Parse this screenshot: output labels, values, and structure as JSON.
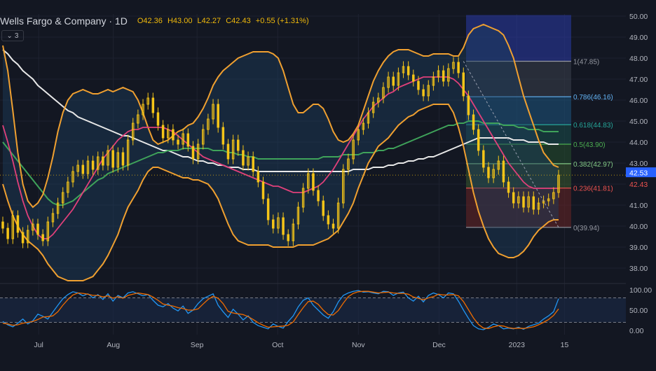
{
  "header": {
    "symbol": "Wells Fargo & Company · 1D",
    "open": "O42.36",
    "high": "H43.00",
    "low": "L42.27",
    "close": "C42.43",
    "change": "+0.55 (+1.31%)"
  },
  "indicators_button": {
    "icon": "chevron-down-icon",
    "count": "3"
  },
  "colors": {
    "background": "#131722",
    "grid": "#1e2230",
    "axis_text": "#b2b5be",
    "up": "#f5c518",
    "bands": "#f0a030",
    "basis": "#e0407a",
    "sma_green": "#3fa35a",
    "sma_white": "#e8e8e8",
    "stoch_k": "#2196f3",
    "stoch_d": "#ef6c00"
  },
  "chart_data": [
    {
      "type": "candlestick",
      "title": "",
      "ylim": [
        37.3,
        50.1
      ],
      "y_ticks": [
        "50.00",
        "49.00",
        "48.00",
        "47.00",
        "46.00",
        "45.00",
        "44.00",
        "43.00",
        "42.00",
        "41.00",
        "40.00",
        "39.00",
        "38.00"
      ],
      "x_ticks": [
        "Jul",
        "Aug",
        "Sep",
        "Oct",
        "Nov",
        "Dec",
        "2023",
        "15"
      ],
      "price_labels": {
        "last": "42.43",
        "other": "42.53"
      },
      "closes": [
        39.9,
        39.4,
        40.5,
        39.7,
        39.2,
        39.8,
        40.1,
        39.6,
        39.3,
        40.2,
        40.6,
        41.1,
        41.6,
        42.1,
        42.6,
        42.9,
        42.5,
        43.1,
        42.7,
        43.3,
        42.9,
        43.6,
        42.8,
        43.5,
        42.9,
        44.1,
        44.9,
        45.3,
        45.8,
        46.1,
        45.4,
        44.8,
        44.2,
        44.6,
        44.1,
        43.9,
        44.4,
        43.8,
        43.2,
        43.9,
        44.6,
        45.1,
        45.8,
        44.7,
        43.9,
        43.2,
        44.1,
        43.6,
        42.9,
        43.3,
        42.6,
        42.1,
        41.3,
        40.3,
        39.9,
        40.4,
        39.6,
        39.3,
        40.1,
        40.9,
        41.8,
        42.5,
        41.7,
        41.2,
        40.5,
        40.1,
        39.9,
        41.1,
        42.7,
        43.2,
        44.1,
        44.6,
        44.9,
        45.4,
        45.9,
        46.1,
        46.6,
        47.1,
        46.7,
        47.3,
        47.6,
        47.2,
        46.9,
        46.5,
        46.2,
        46.7,
        47.1,
        47.4,
        46.9,
        47.5,
        47.8,
        47.3,
        46.2,
        45.3,
        44.6,
        43.6,
        42.8,
        42.3,
        42.7,
        43.1,
        42.1,
        41.6,
        41.1,
        41.4,
        40.9,
        41.4,
        40.8,
        41.1,
        41.2,
        41.3,
        41.6,
        42.43
      ],
      "bollinger_upper": [
        48.6,
        47.4,
        45.5,
        43.5,
        42.0,
        41.2,
        40.9,
        41.1,
        41.5,
        42.3,
        43.3,
        44.5,
        45.4,
        46.0,
        46.3,
        46.4,
        46.5,
        46.4,
        46.3,
        46.3,
        46.4,
        46.5,
        46.4,
        46.5,
        46.6,
        46.5,
        46.4,
        46.0,
        45.4,
        44.7,
        44.1,
        43.9,
        44.0,
        44.1,
        44.3,
        44.5,
        44.6,
        44.8,
        44.9,
        45.2,
        45.6,
        46.1,
        46.7,
        47.1,
        47.4,
        47.6,
        47.8,
        48.0,
        48.1,
        48.2,
        48.3,
        48.3,
        48.3,
        48.3,
        48.2,
        48.0,
        47.4,
        46.6,
        45.8,
        45.4,
        45.4,
        45.6,
        45.8,
        45.8,
        45.6,
        45.1,
        44.5,
        44.1,
        44.0,
        44.1,
        44.4,
        44.8,
        45.5,
        46.2,
        46.9,
        47.4,
        47.8,
        48.1,
        48.3,
        48.4,
        48.4,
        48.4,
        48.3,
        48.2,
        48.1,
        48.1,
        48.2,
        48.2,
        48.2,
        48.2,
        48.1,
        48.1,
        48.5,
        49.1,
        49.4,
        49.5,
        49.6,
        49.5,
        49.4,
        49.3,
        49.1,
        48.6,
        48.0,
        47.1,
        46.2,
        45.5,
        44.8,
        44.1,
        43.5,
        43.2,
        42.9,
        42.8
      ],
      "bollinger_lower": [
        42.0,
        41.2,
        40.5,
        40.0,
        39.6,
        39.3,
        39.1,
        38.9,
        38.6,
        38.2,
        37.9,
        37.6,
        37.5,
        37.4,
        37.4,
        37.4,
        37.4,
        37.5,
        37.6,
        37.9,
        38.2,
        38.6,
        39.1,
        39.6,
        40.3,
        40.9,
        41.3,
        41.7,
        42.2,
        42.6,
        42.8,
        42.8,
        42.7,
        42.6,
        42.5,
        42.4,
        42.3,
        42.3,
        42.2,
        42.2,
        42.1,
        42.0,
        41.7,
        41.3,
        40.7,
        40.1,
        39.6,
        39.3,
        39.2,
        39.1,
        39.1,
        39.1,
        39.1,
        39.1,
        39.0,
        39.0,
        39.0,
        39.0,
        39.0,
        39.1,
        39.1,
        39.1,
        39.1,
        39.2,
        39.3,
        39.4,
        39.6,
        39.8,
        40.2,
        40.6,
        41.1,
        41.8,
        42.4,
        43.0,
        43.4,
        43.8,
        44.0,
        44.2,
        44.5,
        44.8,
        45.0,
        45.2,
        45.3,
        45.5,
        45.6,
        45.7,
        45.8,
        45.8,
        45.8,
        45.8,
        45.4,
        44.7,
        43.8,
        42.7,
        41.6,
        40.7,
        40.0,
        39.4,
        39.0,
        38.7,
        38.6,
        38.5,
        38.5,
        38.6,
        38.8,
        39.1,
        39.5,
        39.8,
        40.0,
        40.2,
        40.3,
        40.3
      ],
      "bollinger_basis": [
        44.8,
        44.0,
        43.1,
        42.1,
        41.2,
        40.5,
        40.0,
        39.6,
        39.4,
        39.4,
        39.6,
        39.9,
        40.2,
        40.5,
        40.8,
        41.2,
        41.6,
        42.0,
        42.4,
        42.8,
        43.2,
        43.5,
        43.8,
        44.1,
        44.3,
        44.5,
        44.6,
        44.6,
        44.7,
        44.7,
        44.7,
        44.7,
        44.7,
        44.6,
        44.5,
        44.3,
        44.1,
        43.9,
        43.7,
        43.5,
        43.3,
        43.2,
        43.1,
        43.0,
        42.9,
        42.8,
        42.7,
        42.6,
        42.5,
        42.4,
        42.3,
        42.2,
        42.1,
        42.0,
        41.9,
        41.9,
        41.8,
        41.7,
        41.6,
        41.6,
        41.6,
        41.7,
        41.8,
        41.9,
        42.1,
        42.4,
        42.7,
        43.1,
        43.5,
        43.9,
        44.3,
        44.7,
        45.1,
        45.4,
        45.7,
        45.9,
        46.1,
        46.3,
        46.4,
        46.6,
        46.7,
        46.8,
        46.9,
        47.0,
        47.1,
        47.1,
        47.1,
        47.1,
        47.1,
        47.1,
        47.0,
        46.8,
        46.5,
        46.2,
        45.8,
        45.4,
        45.0,
        44.6,
        44.2,
        43.8,
        43.4,
        43.0,
        42.7,
        42.4,
        42.1,
        41.9,
        41.8,
        41.8,
        41.8,
        41.8,
        41.8,
        41.8
      ],
      "sma_green": [
        44.0,
        43.7,
        43.4,
        43.1,
        42.8,
        42.5,
        42.2,
        41.9,
        41.6,
        41.3,
        41.1,
        41.0,
        41.0,
        41.1,
        41.2,
        41.4,
        41.6,
        41.8,
        42.0,
        42.2,
        42.3,
        42.5,
        42.6,
        42.7,
        42.8,
        42.9,
        43.0,
        43.1,
        43.2,
        43.3,
        43.4,
        43.5,
        43.5,
        43.6,
        43.6,
        43.6,
        43.7,
        43.7,
        43.7,
        43.7,
        43.7,
        43.7,
        43.6,
        43.6,
        43.6,
        43.5,
        43.5,
        43.4,
        43.4,
        43.3,
        43.3,
        43.2,
        43.2,
        43.2,
        43.2,
        43.2,
        43.2,
        43.2,
        43.2,
        43.2,
        43.2,
        43.2,
        43.2,
        43.2,
        43.3,
        43.3,
        43.3,
        43.3,
        43.4,
        43.4,
        43.4,
        43.4,
        43.5,
        43.5,
        43.5,
        43.6,
        43.6,
        43.7,
        43.7,
        43.8,
        43.9,
        44.0,
        44.1,
        44.2,
        44.3,
        44.4,
        44.5,
        44.6,
        44.7,
        44.8,
        44.8,
        44.9,
        44.9,
        45.0,
        45.0,
        45.0,
        44.9,
        44.9,
        44.9,
        44.9,
        44.8,
        44.8,
        44.8,
        44.7,
        44.7,
        44.6,
        44.6,
        44.6,
        44.5,
        44.5,
        44.5,
        44.5
      ],
      "sma_white": [
        48.4,
        48.2,
        47.9,
        47.7,
        47.4,
        47.2,
        47.0,
        46.7,
        46.5,
        46.3,
        46.1,
        45.9,
        45.7,
        45.5,
        45.4,
        45.2,
        45.1,
        45.0,
        44.9,
        44.8,
        44.7,
        44.6,
        44.5,
        44.4,
        44.3,
        44.3,
        44.2,
        44.1,
        44.0,
        43.9,
        43.8,
        43.7,
        43.6,
        43.6,
        43.5,
        43.4,
        43.3,
        43.3,
        43.2,
        43.1,
        43.1,
        43.0,
        43.0,
        42.9,
        42.9,
        42.8,
        42.8,
        42.8,
        42.7,
        42.7,
        42.7,
        42.6,
        42.6,
        42.6,
        42.6,
        42.6,
        42.6,
        42.6,
        42.6,
        42.6,
        42.6,
        42.6,
        42.6,
        42.6,
        42.6,
        42.6,
        42.6,
        42.6,
        42.6,
        42.6,
        42.7,
        42.7,
        42.7,
        42.7,
        42.8,
        42.8,
        42.8,
        42.9,
        42.9,
        43.0,
        43.0,
        43.1,
        43.1,
        43.2,
        43.2,
        43.3,
        43.3,
        43.4,
        43.5,
        43.6,
        43.7,
        43.8,
        43.9,
        44.0,
        44.1,
        44.2,
        44.2,
        44.2,
        44.2,
        44.2,
        44.2,
        44.2,
        44.1,
        44.1,
        44.1,
        44.0,
        44.0,
        44.0,
        44.0,
        43.9,
        43.9,
        43.9
      ],
      "fibonacci": [
        {
          "label": "1(47.85)",
          "value": 47.85,
          "color": "#9598a1"
        },
        {
          "label": "0.786(46.16)",
          "value": 46.16,
          "color": "#64b5f6"
        },
        {
          "label": "0.618(44.83)",
          "value": 44.83,
          "color": "#26a69a"
        },
        {
          "label": "0.5(43.90)",
          "value": 43.9,
          "color": "#4caf50"
        },
        {
          "label": "0.382(42.97)",
          "value": 42.97,
          "color": "#81c784"
        },
        {
          "label": "0.236(41.81)",
          "value": 41.81,
          "color": "#ef5350"
        },
        {
          "label": "0(39.94)",
          "value": 39.94,
          "color": "#9598a1"
        }
      ]
    },
    {
      "type": "line",
      "title": "",
      "ylim": [
        -10,
        110
      ],
      "y_ticks": [
        "100.00",
        "50.00",
        "0.00"
      ],
      "levels": [
        80,
        20
      ],
      "series": [
        {
          "values": [
            22,
            14,
            9,
            18,
            28,
            16,
            24,
            40,
            35,
            28,
            45,
            62,
            78,
            88,
            95,
            92,
            85,
            90,
            80,
            88,
            76,
            90,
            72,
            86,
            80,
            92,
            95,
            90,
            85,
            88,
            74,
            62,
            58,
            66,
            55,
            48,
            60,
            42,
            50,
            66,
            78,
            84,
            90,
            62,
            46,
            32,
            52,
            40,
            26,
            36,
            20,
            12,
            8,
            4,
            16,
            10,
            6,
            22,
            36,
            58,
            74,
            80,
            62,
            50,
            38,
            30,
            46,
            70,
            86,
            92,
            96,
            98,
            94,
            95,
            92,
            90,
            96,
            95,
            86,
            92,
            94,
            80,
            72,
            84,
            70,
            86,
            92,
            88,
            80,
            92,
            90,
            72,
            50,
            30,
            12,
            4,
            2,
            8,
            16,
            12,
            4,
            6,
            4,
            8,
            3,
            10,
            14,
            18,
            28,
            36,
            46,
            78
          ]
        },
        {
          "values": [
            18,
            16,
            13,
            14,
            18,
            20,
            22,
            27,
            33,
            34,
            36,
            46,
            62,
            76,
            87,
            92,
            91,
            89,
            86,
            86,
            82,
            85,
            79,
            83,
            79,
            86,
            89,
            92,
            90,
            88,
            82,
            74,
            65,
            62,
            60,
            56,
            54,
            50,
            50,
            53,
            65,
            76,
            84,
            79,
            66,
            47,
            43,
            41,
            39,
            34,
            27,
            19,
            13,
            8,
            9,
            10,
            11,
            13,
            21,
            39,
            56,
            71,
            72,
            64,
            50,
            39,
            38,
            49,
            67,
            83,
            91,
            95,
            96,
            96,
            94,
            92,
            93,
            94,
            92,
            91,
            91,
            89,
            82,
            79,
            75,
            80,
            83,
            89,
            87,
            87,
            88,
            85,
            71,
            51,
            31,
            15,
            6,
            5,
            9,
            12,
            11,
            7,
            5,
            6,
            5,
            7,
            9,
            14,
            20,
            27,
            37,
            53
          ]
        }
      ]
    }
  ]
}
